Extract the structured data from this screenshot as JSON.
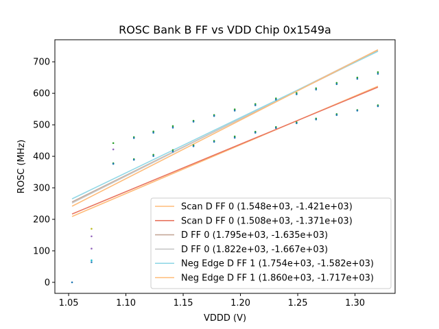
{
  "chart_data": {
    "type": "line",
    "title": "ROSC Bank B FF vs VDD Chip 0x1549a",
    "xlabel": "VDDD (V)",
    "ylabel": "ROSC (MHz)",
    "xlim": [
      1.038,
      1.335
    ],
    "ylim": [
      -35,
      770
    ],
    "xticks": [
      1.05,
      1.1,
      1.15,
      1.2,
      1.25,
      1.3
    ],
    "xtick_labels": [
      "1.05",
      "1.10",
      "1.15",
      "1.20",
      "1.25",
      "1.30"
    ],
    "yticks": [
      0,
      100,
      200,
      300,
      400,
      500,
      600,
      700
    ],
    "ytick_labels": [
      "0",
      "100",
      "200",
      "300",
      "400",
      "500",
      "600",
      "700"
    ],
    "legend_position": "lower-right",
    "fit_range": [
      1.053,
      1.32
    ],
    "series": [
      {
        "name": "Scan D FF 0 (1.548e+03, -1.421e+03)",
        "slope": 1548,
        "intercept": -1421,
        "color": "#ffbb78"
      },
      {
        "name": "Scan D FF 0 (1.508e+03, -1.371e+03)",
        "slope": 1508,
        "intercept": -1371,
        "color": "#ff7f0e"
      },
      {
        "name": "D FF 0 (1.795e+03, -1.635e+03)",
        "slope": 1795,
        "intercept": -1635,
        "color": "#c49c94"
      },
      {
        "name": "D FF 0 (1.822e+03, -1.667e+03)",
        "slope": 1822,
        "intercept": -1667,
        "color": "#c7c7c7"
      },
      {
        "name": "Neg Edge D FF 1 (1.754e+03, -1.582e+03)",
        "slope": 1754,
        "intercept": -1582,
        "color": "#9edae5"
      },
      {
        "name": "Neg Edge D FF 1 (1.860e+03, -1.717e+03)",
        "slope": 1860,
        "intercept": -1717,
        "color": "#ffbb78"
      }
    ],
    "line_colors": [
      "#ffbb78",
      "#e8745f",
      "#c4a898",
      "#c7c7c7",
      "#92d8e6",
      "#ffbb78"
    ],
    "scatter": {
      "color_teal": "#17becf",
      "color_green": "#2ca02c",
      "color_purple": "#9467bd",
      "color_yellow": "#bcbd22",
      "color_blue": "#1f77b4",
      "points": [
        {
          "x": 1.053,
          "y": 0,
          "c": "#1f77b4"
        },
        {
          "x": 1.07,
          "y": 170,
          "c": "#bcbd22"
        },
        {
          "x": 1.07,
          "y": 146,
          "c": "#9467bd"
        },
        {
          "x": 1.07,
          "y": 107,
          "c": "#9467bd"
        },
        {
          "x": 1.07,
          "y": 70,
          "c": "#17becf"
        },
        {
          "x": 1.07,
          "y": 64,
          "c": "#1f77b4"
        },
        {
          "x": 1.089,
          "y": 442,
          "c": "#2ca02c"
        },
        {
          "x": 1.089,
          "y": 422,
          "c": "#9467bd"
        },
        {
          "x": 1.089,
          "y": 378,
          "c": "#2ca02c"
        },
        {
          "x": 1.089,
          "y": 376,
          "c": "#1f77b4"
        },
        {
          "x": 1.107,
          "y": 461,
          "c": "#2ca02c"
        },
        {
          "x": 1.107,
          "y": 458,
          "c": "#1f77b4"
        },
        {
          "x": 1.107,
          "y": 391,
          "c": "#2ca02c"
        },
        {
          "x": 1.107,
          "y": 389,
          "c": "#1f77b4"
        },
        {
          "x": 1.124,
          "y": 479,
          "c": "#2ca02c"
        },
        {
          "x": 1.124,
          "y": 475,
          "c": "#1f77b4"
        },
        {
          "x": 1.124,
          "y": 405,
          "c": "#2ca02c"
        },
        {
          "x": 1.124,
          "y": 401,
          "c": "#1f77b4"
        },
        {
          "x": 1.141,
          "y": 496,
          "c": "#2ca02c"
        },
        {
          "x": 1.141,
          "y": 491,
          "c": "#1f77b4"
        },
        {
          "x": 1.141,
          "y": 420,
          "c": "#2ca02c"
        },
        {
          "x": 1.141,
          "y": 415,
          "c": "#1f77b4"
        },
        {
          "x": 1.159,
          "y": 513,
          "c": "#2ca02c"
        },
        {
          "x": 1.159,
          "y": 510,
          "c": "#1f77b4"
        },
        {
          "x": 1.159,
          "y": 435,
          "c": "#2ca02c"
        },
        {
          "x": 1.159,
          "y": 432,
          "c": "#1f77b4"
        },
        {
          "x": 1.177,
          "y": 531,
          "c": "#2ca02c"
        },
        {
          "x": 1.177,
          "y": 528,
          "c": "#1f77b4"
        },
        {
          "x": 1.177,
          "y": 449,
          "c": "#2ca02c"
        },
        {
          "x": 1.177,
          "y": 446,
          "c": "#1f77b4"
        },
        {
          "x": 1.195,
          "y": 549,
          "c": "#2ca02c"
        },
        {
          "x": 1.195,
          "y": 545,
          "c": "#1f77b4"
        },
        {
          "x": 1.195,
          "y": 463,
          "c": "#2ca02c"
        },
        {
          "x": 1.195,
          "y": 459,
          "c": "#1f77b4"
        },
        {
          "x": 1.213,
          "y": 566,
          "c": "#2ca02c"
        },
        {
          "x": 1.213,
          "y": 562,
          "c": "#1f77b4"
        },
        {
          "x": 1.213,
          "y": 478,
          "c": "#2ca02c"
        },
        {
          "x": 1.213,
          "y": 475,
          "c": "#1f77b4"
        },
        {
          "x": 1.231,
          "y": 584,
          "c": "#2ca02c"
        },
        {
          "x": 1.231,
          "y": 580,
          "c": "#1f77b4"
        },
        {
          "x": 1.231,
          "y": 493,
          "c": "#2ca02c"
        },
        {
          "x": 1.231,
          "y": 490,
          "c": "#1f77b4"
        },
        {
          "x": 1.249,
          "y": 601,
          "c": "#2ca02c"
        },
        {
          "x": 1.249,
          "y": 597,
          "c": "#1f77b4"
        },
        {
          "x": 1.249,
          "y": 508,
          "c": "#2ca02c"
        },
        {
          "x": 1.249,
          "y": 505,
          "c": "#1f77b4"
        },
        {
          "x": 1.266,
          "y": 616,
          "c": "#2ca02c"
        },
        {
          "x": 1.266,
          "y": 612,
          "c": "#1f77b4"
        },
        {
          "x": 1.266,
          "y": 520,
          "c": "#2ca02c"
        },
        {
          "x": 1.266,
          "y": 517,
          "c": "#1f77b4"
        },
        {
          "x": 1.284,
          "y": 633,
          "c": "#2ca02c"
        },
        {
          "x": 1.284,
          "y": 629,
          "c": "#1f77b4"
        },
        {
          "x": 1.284,
          "y": 534,
          "c": "#2ca02c"
        },
        {
          "x": 1.284,
          "y": 531,
          "c": "#1f77b4"
        },
        {
          "x": 1.302,
          "y": 650,
          "c": "#2ca02c"
        },
        {
          "x": 1.302,
          "y": 646,
          "c": "#1f77b4"
        },
        {
          "x": 1.302,
          "y": 547,
          "c": "#2ca02c"
        },
        {
          "x": 1.302,
          "y": 545,
          "c": "#1f77b4"
        },
        {
          "x": 1.32,
          "y": 667,
          "c": "#2ca02c"
        },
        {
          "x": 1.32,
          "y": 662,
          "c": "#1f77b4"
        },
        {
          "x": 1.32,
          "y": 562,
          "c": "#2ca02c"
        },
        {
          "x": 1.32,
          "y": 559,
          "c": "#1f77b4"
        }
      ]
    }
  }
}
